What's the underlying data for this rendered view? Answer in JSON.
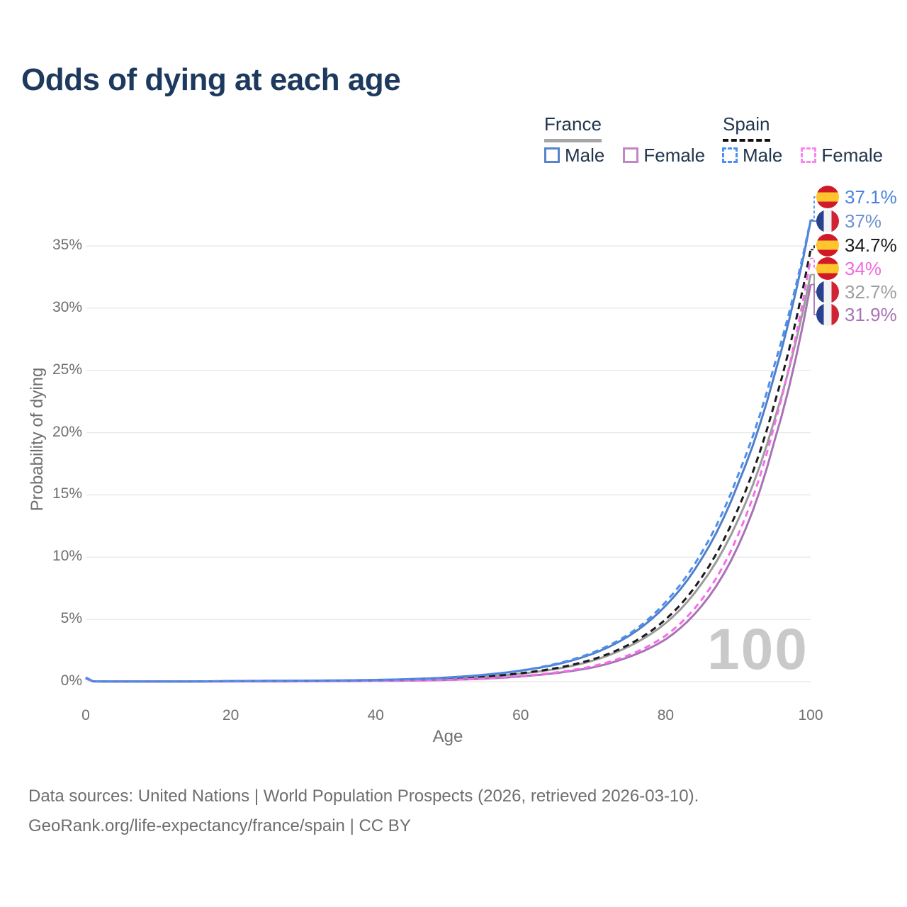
{
  "title": "Odds of dying at each age",
  "watermark": "100",
  "legend": {
    "groups": [
      {
        "country": "France",
        "underline": {
          "style": "solid",
          "color": "#a6a6a6"
        },
        "entries": [
          {
            "label": "Male",
            "style": "solid",
            "color": "#5585c8"
          },
          {
            "label": "Female",
            "style": "solid",
            "color": "#c285c6"
          }
        ]
      },
      {
        "country": "Spain",
        "underline": {
          "style": "dashed",
          "color": "#111111"
        },
        "entries": [
          {
            "label": "Male",
            "style": "dashed",
            "color": "#4d8ef2"
          },
          {
            "label": "Female",
            "style": "dashed",
            "color": "#fa85ee"
          }
        ]
      }
    ]
  },
  "chart_data": {
    "type": "line",
    "title": "Odds of dying at each age",
    "xlabel": "Age",
    "ylabel": "Probability of dying",
    "xlim": [
      0,
      100
    ],
    "ylim_percent": [
      0,
      38
    ],
    "grid": "horizontal",
    "xticks": [
      0,
      20,
      40,
      60,
      80,
      100
    ],
    "yticks": [
      {
        "value": 0,
        "label": "0%"
      },
      {
        "value": 5,
        "label": "5%"
      },
      {
        "value": 10,
        "label": "10%"
      },
      {
        "value": 15,
        "label": "15%"
      },
      {
        "value": 20,
        "label": "20%"
      },
      {
        "value": 25,
        "label": "25%"
      },
      {
        "value": 30,
        "label": "30%"
      },
      {
        "value": 35,
        "label": "35%"
      }
    ],
    "x": [
      0,
      1,
      2,
      5,
      10,
      15,
      20,
      25,
      30,
      35,
      40,
      45,
      50,
      55,
      60,
      65,
      70,
      75,
      80,
      85,
      90,
      95,
      100
    ],
    "series": [
      {
        "key": "france_total",
        "name": "France Overall",
        "country": "france",
        "style": "solid",
        "color": "#9b9b9b",
        "values": [
          0.3,
          0.03,
          0.02,
          0.01,
          0.01,
          0.02,
          0.03,
          0.04,
          0.05,
          0.07,
          0.1,
          0.15,
          0.24,
          0.39,
          0.64,
          1.03,
          1.7,
          2.85,
          4.7,
          7.9,
          13.0,
          21.0,
          32.7
        ],
        "end_label": "32.7%",
        "end_label_color": "#9e9e9e"
      },
      {
        "key": "france_female",
        "name": "France Female",
        "country": "france",
        "style": "solid",
        "color": "#a873b5",
        "values": [
          0.28,
          0.02,
          0.01,
          0.01,
          0.01,
          0.01,
          0.02,
          0.02,
          0.03,
          0.04,
          0.06,
          0.09,
          0.14,
          0.24,
          0.42,
          0.7,
          1.15,
          2.0,
          3.4,
          6.1,
          10.9,
          19.3,
          31.9
        ],
        "end_label": "31.9%",
        "end_label_color": "#a873b5"
      },
      {
        "key": "france_male",
        "name": "France Male",
        "country": "france",
        "style": "solid",
        "color": "#4f7fc9",
        "values": [
          0.35,
          0.03,
          0.02,
          0.01,
          0.01,
          0.02,
          0.05,
          0.07,
          0.08,
          0.1,
          0.14,
          0.21,
          0.34,
          0.55,
          0.88,
          1.4,
          2.25,
          3.7,
          6.1,
          9.9,
          15.9,
          24.6,
          37.0
        ],
        "end_label": "37%",
        "end_label_color": "#6b90cf"
      },
      {
        "key": "spain_total",
        "name": "Spain Overall",
        "country": "spain",
        "style": "dashed",
        "color": "#1a1a1a",
        "values": [
          0.28,
          0.03,
          0.02,
          0.01,
          0.01,
          0.02,
          0.04,
          0.05,
          0.05,
          0.07,
          0.1,
          0.15,
          0.24,
          0.4,
          0.68,
          1.1,
          1.8,
          3.0,
          5.0,
          8.4,
          13.9,
          22.3,
          34.7
        ],
        "end_label": "34.7%",
        "end_label_color": "#1a1a1a"
      },
      {
        "key": "spain_female",
        "name": "Spain Female",
        "country": "spain",
        "style": "dashed",
        "color": "#f46ee9",
        "values": [
          0.25,
          0.02,
          0.01,
          0.01,
          0.01,
          0.01,
          0.02,
          0.02,
          0.03,
          0.04,
          0.06,
          0.09,
          0.15,
          0.26,
          0.45,
          0.75,
          1.25,
          2.15,
          3.7,
          6.6,
          11.8,
          20.6,
          34.0
        ],
        "end_label": "34%",
        "end_label_color": "#ef6be0"
      },
      {
        "key": "spain_male",
        "name": "Spain Male",
        "country": "spain",
        "style": "dashed",
        "color": "#4d8ef2",
        "values": [
          0.3,
          0.03,
          0.02,
          0.01,
          0.01,
          0.02,
          0.05,
          0.06,
          0.07,
          0.09,
          0.13,
          0.2,
          0.33,
          0.55,
          0.9,
          1.45,
          2.35,
          3.85,
          6.4,
          10.4,
          16.6,
          25.4,
          37.1
        ],
        "end_label": "37.1%",
        "end_label_color": "#4a82dd"
      }
    ],
    "end_label_order": [
      "spain_male",
      "france_male",
      "spain_total",
      "spain_female",
      "france_total",
      "france_female"
    ],
    "legend_position": "top-right"
  },
  "flags": {
    "spain_colors": [
      "#d01a28",
      "#ffc42e"
    ],
    "france_colors": [
      "#27418f",
      "#f2f2f4",
      "#ce2433"
    ]
  },
  "footer": {
    "line1": "Data sources: United Nations | World Population Prospects (2026, retrieved 2026-03-10).",
    "line2": "GeoRank.org/life-expectancy/france/spain | CC BY"
  }
}
